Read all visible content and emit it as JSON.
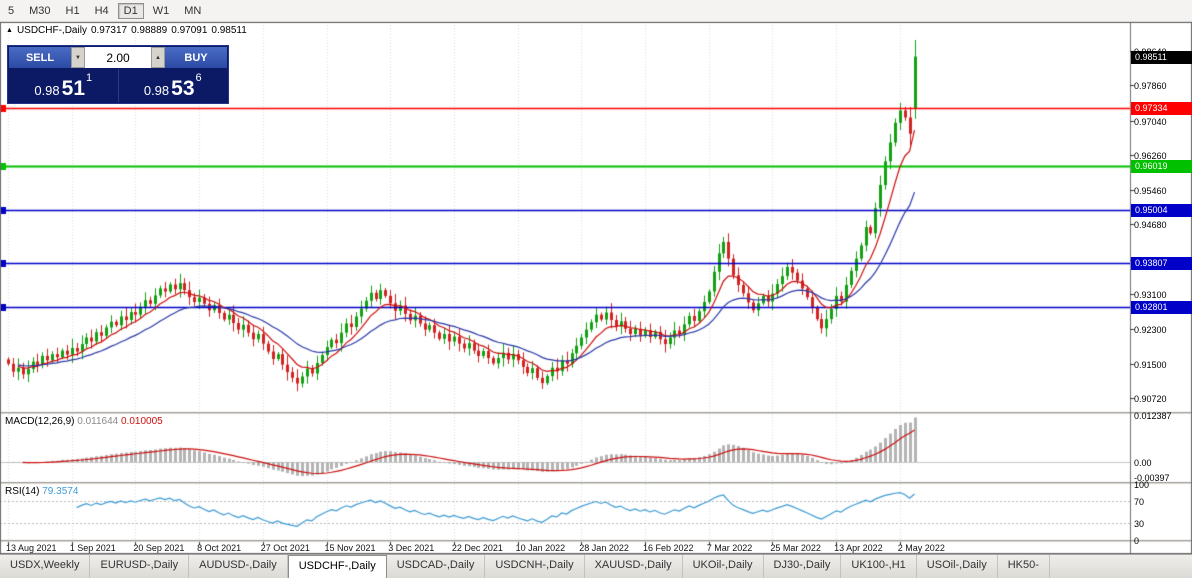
{
  "colors": {
    "bull": "#13a113",
    "bear": "#d32222",
    "ma_fast": "#cc1111",
    "ma_slow": "#2b3aa8",
    "macd_hist": "#b4b4b4",
    "macd_signal": "#cc1111",
    "rsi_line": "#3d9bd5",
    "badge_current": "#000000"
  },
  "toolbar": {
    "timeframes": [
      {
        "label": "5",
        "active": false
      },
      {
        "label": "M30",
        "active": false
      },
      {
        "label": "H1",
        "active": false
      },
      {
        "label": "H4",
        "active": false
      },
      {
        "label": "D1",
        "active": true
      },
      {
        "label": "W1",
        "active": false
      },
      {
        "label": "MN",
        "active": false
      }
    ]
  },
  "chart": {
    "title": {
      "symbol": "USDCHF-,Daily",
      "open": "0.97317",
      "high": "0.98889",
      "low": "0.97091",
      "close": "0.98511"
    },
    "trade_panel": {
      "sell_label": "SELL",
      "buy_label": "BUY",
      "volume": "2.00",
      "sell_price": {
        "big": "0.98",
        "pips": "51",
        "pipette": "1"
      },
      "buy_price": {
        "big": "0.98",
        "pips": "53",
        "pipette": "6"
      }
    },
    "price_axis_labels": [
      "0.98640",
      "0.97860",
      "0.97040",
      "0.96260",
      "0.95460",
      "0.94680",
      "0.93880",
      "0.93100",
      "0.92300",
      "0.91500",
      "0.90720"
    ],
    "current_price_badge": "0.98511",
    "hlines": [
      {
        "price": 0.97334,
        "label": "0.97334",
        "color": "#ff0000",
        "thickness": 1.5
      },
      {
        "price": 0.96019,
        "label": "0.96019",
        "color": "#00c000",
        "thickness": 2
      },
      {
        "price": 0.95004,
        "label": "0.95004",
        "color": "#0000c8",
        "thickness": 1.5
      },
      {
        "price": 0.93807,
        "label": "0.93807",
        "color": "#0000c8",
        "thickness": 1.5
      },
      {
        "price": 0.92801,
        "label": "0.92801",
        "color": "#0000c8",
        "thickness": 1.5
      }
    ]
  },
  "chart_data": {
    "type": "candlestick",
    "symbol": "USDCHF-,Daily",
    "y_range": [
      0.904,
      0.993
    ],
    "x_tick_every": 13,
    "x_tick_labels": [
      "13 Aug 2021",
      "1 Sep 2021",
      "20 Sep 2021",
      "8 Oct 2021",
      "27 Oct 2021",
      "15 Nov 2021",
      "3 Dec 2021",
      "22 Dec 2021",
      "10 Jan 2022",
      "28 Jan 2022",
      "16 Feb 2022",
      "7 Mar 2022",
      "25 Mar 2022",
      "13 Apr 2022",
      "2 May 2022"
    ],
    "first_open": 0.916,
    "closes": [
      0.915,
      0.9132,
      0.9141,
      0.9126,
      0.9138,
      0.9155,
      0.9147,
      0.9168,
      0.9158,
      0.9172,
      0.9165,
      0.918,
      0.9171,
      0.9186,
      0.9178,
      0.9195,
      0.921,
      0.9201,
      0.9222,
      0.9214,
      0.9233,
      0.9246,
      0.9238,
      0.9258,
      0.925,
      0.9268,
      0.9262,
      0.928,
      0.9295,
      0.9287,
      0.9306,
      0.9322,
      0.9315,
      0.9331,
      0.932,
      0.9334,
      0.9318,
      0.9302,
      0.9291,
      0.9301,
      0.9287,
      0.9272,
      0.9284,
      0.9266,
      0.9251,
      0.9262,
      0.9243,
      0.9228,
      0.9239,
      0.9221,
      0.9206,
      0.9218,
      0.9196,
      0.9178,
      0.9161,
      0.9172,
      0.9148,
      0.9131,
      0.9118,
      0.9105,
      0.9121,
      0.9139,
      0.9128,
      0.9152,
      0.917,
      0.9188,
      0.9205,
      0.9197,
      0.9221,
      0.9242,
      0.9234,
      0.9258,
      0.9276,
      0.9294,
      0.9312,
      0.9298,
      0.9318,
      0.9305,
      0.9288,
      0.9271,
      0.9283,
      0.9264,
      0.9249,
      0.926,
      0.9242,
      0.9228,
      0.9238,
      0.9221,
      0.9207,
      0.9218,
      0.9201,
      0.9212,
      0.9196,
      0.9185,
      0.9197,
      0.918,
      0.9168,
      0.9179,
      0.9163,
      0.9151,
      0.9163,
      0.9175,
      0.916,
      0.9172,
      0.9158,
      0.9143,
      0.9129,
      0.914,
      0.9118,
      0.9106,
      0.9122,
      0.9141,
      0.9133,
      0.9158,
      0.915,
      0.9174,
      0.9191,
      0.921,
      0.9228,
      0.9245,
      0.9262,
      0.9251,
      0.9267,
      0.925,
      0.9235,
      0.9247,
      0.923,
      0.9218,
      0.923,
      0.9215,
      0.9227,
      0.9211,
      0.9223,
      0.9206,
      0.9195,
      0.921,
      0.9226,
      0.9218,
      0.924,
      0.9259,
      0.9248,
      0.927,
      0.9291,
      0.9315,
      0.936,
      0.9402,
      0.9428,
      0.939,
      0.9352,
      0.933,
      0.9311,
      0.929,
      0.9272,
      0.9288,
      0.9305,
      0.9292,
      0.931,
      0.9332,
      0.935,
      0.9371,
      0.9358,
      0.934,
      0.9322,
      0.9302,
      0.9278,
      0.9252,
      0.9231,
      0.9252,
      0.9275,
      0.9305,
      0.9292,
      0.933,
      0.9362,
      0.939,
      0.942,
      0.9462,
      0.9448,
      0.9505,
      0.9558,
      0.9612,
      0.9655,
      0.97,
      0.9728,
      0.9712,
      0.9675,
      0.98511
    ],
    "candle_overrides": {
      "184": [
        0.9712,
        0.9736,
        0.9648,
        0.9675
      ],
      "185": [
        0.97317,
        0.98889,
        0.97091,
        0.98511
      ]
    },
    "indicators": {
      "ma_fast_period": 8,
      "ma_slow_period": 21
    }
  },
  "macd": {
    "name": "MACD(12,26,9)",
    "value_main": "0.011644",
    "value_signal": "0.010005",
    "axis_labels": [
      "0.012387",
      "0.00",
      "-0.00397"
    ]
  },
  "rsi": {
    "name": "RSI(14)",
    "value": "79.3574",
    "axis_labels": [
      "100",
      "70",
      "30",
      "0"
    ],
    "levels": [
      70,
      30
    ]
  },
  "tabs": [
    {
      "label": "USDX,Weekly",
      "active": false
    },
    {
      "label": "EURUSD-,Daily",
      "active": false
    },
    {
      "label": "AUDUSD-,Daily",
      "active": false
    },
    {
      "label": "USDCHF-,Daily",
      "active": true
    },
    {
      "label": "USDCAD-,Daily",
      "active": false
    },
    {
      "label": "USDCNH-,Daily",
      "active": false
    },
    {
      "label": "XAUUSD-,Daily",
      "active": false
    },
    {
      "label": "UKOil-,Daily",
      "active": false
    },
    {
      "label": "DJ30-,Daily",
      "active": false
    },
    {
      "label": "UK100-,H1",
      "active": false
    },
    {
      "label": "USOil-,Daily",
      "active": false
    },
    {
      "label": "HK50-",
      "active": false
    }
  ]
}
